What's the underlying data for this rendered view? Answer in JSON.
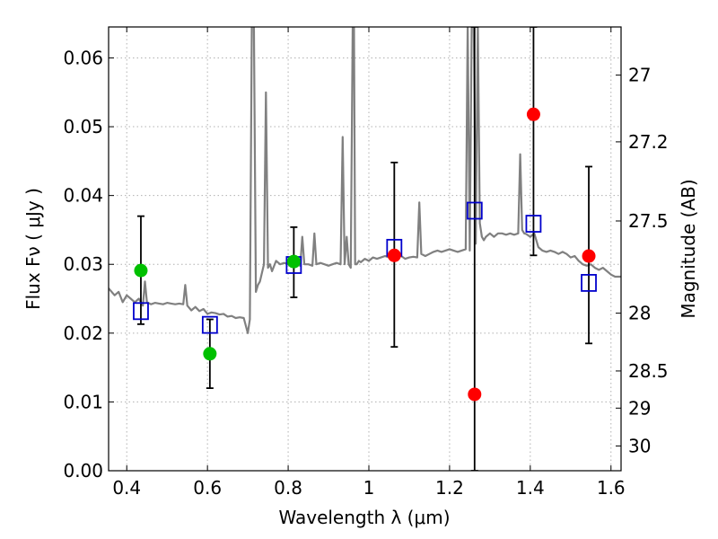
{
  "chart_data": {
    "type": "scatter",
    "xlabel": "Wavelength  λ (μm)",
    "ylabel": "Flux  Fν  ( μJy )",
    "y2label": "Magnitude (AB)",
    "xlim": [
      0.355,
      1.625
    ],
    "ylim": [
      0.0,
      0.0645
    ],
    "grid": true,
    "x_ticks": [
      0.4,
      0.6,
      0.8,
      1.0,
      1.2,
      1.4,
      1.6
    ],
    "x_tick_labels": [
      "0.4",
      "0.6",
      "0.8",
      "1",
      "1.2",
      "1.4",
      "1.6"
    ],
    "y_ticks": [
      0.0,
      0.01,
      0.02,
      0.03,
      0.04,
      0.05,
      0.06
    ],
    "y_tick_labels": [
      "0.00",
      "0.01",
      "0.02",
      "0.03",
      "0.04",
      "0.05",
      "0.06"
    ],
    "y2_ticks": [
      {
        "label": "27",
        "flux": 0.0575
      },
      {
        "label": "27.2",
        "flux": 0.0478
      },
      {
        "label": "27.5",
        "flux": 0.0363
      },
      {
        "label": "28",
        "flux": 0.0229
      },
      {
        "label": "28.5",
        "flux": 0.0145
      },
      {
        "label": "29",
        "flux": 0.0091
      },
      {
        "label": "30",
        "flux": 0.0036
      }
    ],
    "colors": {
      "spectrum": "#808080",
      "green_points": "#00c000",
      "red_points": "#ff0000",
      "model_squares": "#0000cc",
      "error_bars": "#000000",
      "grid": "#b0b0b0"
    },
    "spectrum": {
      "x": [
        0.355,
        0.37,
        0.38,
        0.39,
        0.4,
        0.41,
        0.42,
        0.43,
        0.44,
        0.445,
        0.45,
        0.46,
        0.47,
        0.48,
        0.49,
        0.5,
        0.51,
        0.52,
        0.53,
        0.54,
        0.545,
        0.55,
        0.56,
        0.57,
        0.58,
        0.59,
        0.6,
        0.61,
        0.62,
        0.63,
        0.64,
        0.65,
        0.66,
        0.67,
        0.68,
        0.69,
        0.7,
        0.705,
        0.71,
        0.715,
        0.72,
        0.725,
        0.73,
        0.74,
        0.745,
        0.75,
        0.755,
        0.76,
        0.77,
        0.78,
        0.79,
        0.8,
        0.81,
        0.82,
        0.83,
        0.835,
        0.84,
        0.85,
        0.86,
        0.865,
        0.87,
        0.88,
        0.89,
        0.9,
        0.91,
        0.92,
        0.93,
        0.935,
        0.94,
        0.945,
        0.95,
        0.955,
        0.96,
        0.963,
        0.966,
        0.97,
        0.975,
        0.98,
        0.99,
        1.0,
        1.01,
        1.02,
        1.03,
        1.04,
        1.05,
        1.06,
        1.07,
        1.08,
        1.09,
        1.1,
        1.11,
        1.12,
        1.125,
        1.13,
        1.14,
        1.15,
        1.16,
        1.17,
        1.18,
        1.19,
        1.2,
        1.21,
        1.22,
        1.23,
        1.24,
        1.245,
        1.25,
        1.255,
        1.26,
        1.265,
        1.27,
        1.275,
        1.28,
        1.285,
        1.29,
        1.3,
        1.31,
        1.32,
        1.33,
        1.34,
        1.35,
        1.36,
        1.37,
        1.375,
        1.38,
        1.385,
        1.39,
        1.4,
        1.41,
        1.42,
        1.43,
        1.44,
        1.45,
        1.46,
        1.47,
        1.48,
        1.49,
        1.5,
        1.51,
        1.52,
        1.53,
        1.54,
        1.55,
        1.56,
        1.57,
        1.58,
        1.59,
        1.6,
        1.61,
        1.625
      ],
      "y": [
        0.0265,
        0.0255,
        0.026,
        0.0245,
        0.0255,
        0.025,
        0.0245,
        0.025,
        0.024,
        0.0275,
        0.0245,
        0.0242,
        0.0244,
        0.0243,
        0.0242,
        0.0244,
        0.0243,
        0.0242,
        0.0243,
        0.0242,
        0.027,
        0.024,
        0.0233,
        0.0238,
        0.0232,
        0.0235,
        0.0228,
        0.023,
        0.0229,
        0.0227,
        0.0228,
        0.0224,
        0.0225,
        0.0222,
        0.0223,
        0.0222,
        0.02,
        0.022,
        0.065,
        0.065,
        0.026,
        0.027,
        0.0275,
        0.03,
        0.055,
        0.0295,
        0.03,
        0.029,
        0.0305,
        0.03,
        0.0302,
        0.03,
        0.0305,
        0.03,
        0.0298,
        0.034,
        0.03,
        0.03,
        0.0298,
        0.0345,
        0.03,
        0.0302,
        0.03,
        0.0298,
        0.03,
        0.0302,
        0.03,
        0.0485,
        0.03,
        0.034,
        0.03,
        0.0295,
        0.065,
        0.065,
        0.03,
        0.03,
        0.0305,
        0.0303,
        0.0308,
        0.0305,
        0.031,
        0.0308,
        0.031,
        0.0312,
        0.031,
        0.0308,
        0.031,
        0.0312,
        0.0308,
        0.031,
        0.0311,
        0.031,
        0.039,
        0.0315,
        0.0312,
        0.0315,
        0.0318,
        0.032,
        0.0318,
        0.032,
        0.0322,
        0.032,
        0.0318,
        0.032,
        0.0322,
        0.065,
        0.032,
        0.065,
        0.065,
        0.033,
        0.065,
        0.036,
        0.034,
        0.0335,
        0.034,
        0.0345,
        0.034,
        0.0345,
        0.0345,
        0.0343,
        0.0345,
        0.0343,
        0.0345,
        0.046,
        0.035,
        0.0345,
        0.0344,
        0.034,
        0.0345,
        0.0325,
        0.032,
        0.0318,
        0.032,
        0.0318,
        0.0315,
        0.0318,
        0.0315,
        0.031,
        0.0312,
        0.0305,
        0.03,
        0.0298,
        0.03,
        0.0295,
        0.0292,
        0.0295,
        0.029,
        0.0285,
        0.0282,
        0.0282
      ]
    },
    "green_points": [
      {
        "x": 0.435,
        "y": 0.0291,
        "yerr_low": 0.0213,
        "yerr_high": 0.037
      },
      {
        "x": 0.606,
        "y": 0.017,
        "yerr_low": 0.012,
        "yerr_high": 0.022
      },
      {
        "x": 0.814,
        "y": 0.0304,
        "yerr_low": 0.0252,
        "yerr_high": 0.0354
      }
    ],
    "red_points": [
      {
        "x": 1.063,
        "y": 0.0313,
        "yerr_low": 0.018,
        "yerr_high": 0.0448
      },
      {
        "x": 1.262,
        "y": 0.0111,
        "yerr_low": 0.0,
        "yerr_high": 0.0645
      },
      {
        "x": 1.408,
        "y": 0.0518,
        "yerr_low": 0.0313,
        "yerr_high": 0.0645
      },
      {
        "x": 1.545,
        "y": 0.0312,
        "yerr_low": 0.0185,
        "yerr_high": 0.0442
      }
    ],
    "model_squares": [
      {
        "x": 0.435,
        "y": 0.0232
      },
      {
        "x": 0.606,
        "y": 0.0212
      },
      {
        "x": 0.814,
        "y": 0.0299
      },
      {
        "x": 1.063,
        "y": 0.0324
      },
      {
        "x": 1.262,
        "y": 0.0378
      },
      {
        "x": 1.408,
        "y": 0.0359
      },
      {
        "x": 1.545,
        "y": 0.0273
      }
    ]
  }
}
